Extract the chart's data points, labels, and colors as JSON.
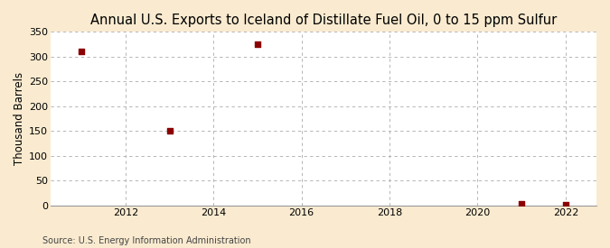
{
  "title": "Annual U.S. Exports to Iceland of Distillate Fuel Oil, 0 to 15 ppm Sulfur",
  "ylabel": "Thousand Barrels",
  "source": "Source: U.S. Energy Information Administration",
  "figure_bg_color": "#faebd0",
  "plot_bg_color": "#ffffff",
  "data_years": [
    2011,
    2013,
    2015,
    2021,
    2022
  ],
  "data_values": [
    310,
    150,
    325,
    3,
    2
  ],
  "marker_color": "#8b0000",
  "marker_size": 4,
  "xlim": [
    2010.3,
    2022.7
  ],
  "ylim": [
    0,
    350
  ],
  "yticks": [
    0,
    50,
    100,
    150,
    200,
    250,
    300,
    350
  ],
  "xticks": [
    2012,
    2014,
    2016,
    2018,
    2020,
    2022
  ],
  "grid_color": "#aaaaaa",
  "title_fontsize": 10.5,
  "label_fontsize": 8.5,
  "tick_fontsize": 8,
  "source_fontsize": 7
}
